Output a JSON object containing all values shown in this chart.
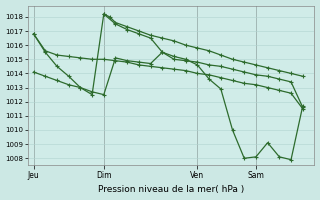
{
  "background_color": "#cce8e4",
  "plot_bg_color": "#d0ece8",
  "grid_color": "#b0d4d0",
  "line_color": "#2d6b2d",
  "marker_color": "#2d6b2d",
  "xlabel": "Pression niveau de la mer( hPa )",
  "ylim": [
    1007.5,
    1018.8
  ],
  "yticks": [
    1008,
    1009,
    1010,
    1011,
    1012,
    1013,
    1014,
    1015,
    1016,
    1017,
    1018
  ],
  "xtick_labels": [
    "Jeu",
    "Dim",
    "Ven",
    "Sam"
  ],
  "xtick_positions": [
    0,
    12,
    28,
    38
  ],
  "total_points": 48,
  "line1_x": [
    0,
    2,
    4,
    6,
    8,
    10,
    12,
    14,
    16,
    18,
    20,
    22,
    24,
    26,
    28,
    30,
    32,
    34,
    36,
    38,
    40,
    42,
    44,
    46
  ],
  "line1_y": [
    1016.8,
    1015.6,
    1015.3,
    1015.2,
    1015.1,
    1015.0,
    1015.0,
    1014.9,
    1014.8,
    1014.6,
    1014.5,
    1014.4,
    1014.3,
    1014.2,
    1014.0,
    1013.9,
    1013.7,
    1013.5,
    1013.3,
    1013.2,
    1013.0,
    1012.8,
    1012.6,
    1011.5
  ],
  "line2_x": [
    0,
    2,
    4,
    6,
    8,
    10,
    12,
    14,
    16,
    18,
    20,
    22,
    24,
    26,
    28,
    30,
    32,
    34,
    36,
    38,
    40,
    42,
    44,
    46
  ],
  "line2_y": [
    1014.1,
    1013.8,
    1013.5,
    1013.2,
    1013.0,
    1012.7,
    1012.5,
    1015.1,
    1014.9,
    1014.8,
    1014.7,
    1015.5,
    1015.0,
    1014.9,
    1014.8,
    1014.6,
    1014.5,
    1014.3,
    1014.1,
    1013.9,
    1013.8,
    1013.6,
    1013.4,
    1011.6
  ],
  "line3_x": [
    0,
    2,
    4,
    6,
    8,
    10,
    12,
    13,
    14,
    16,
    18,
    20,
    22,
    24,
    26,
    28,
    30,
    32,
    34,
    36,
    38,
    40,
    42,
    44,
    46
  ],
  "line3_y": [
    1016.8,
    1015.5,
    1014.5,
    1013.8,
    1013.0,
    1012.5,
    1018.2,
    1018.0,
    1017.6,
    1017.3,
    1017.0,
    1016.7,
    1016.5,
    1016.3,
    1016.0,
    1015.8,
    1015.6,
    1015.3,
    1015.0,
    1014.8,
    1014.6,
    1014.4,
    1014.2,
    1014.0,
    1013.8
  ],
  "line4_x": [
    12,
    14,
    16,
    18,
    20,
    22,
    24,
    26,
    28,
    30,
    32,
    34,
    36,
    38,
    40,
    42,
    44,
    46
  ],
  "line4_y": [
    1018.2,
    1017.5,
    1017.1,
    1016.8,
    1016.5,
    1015.5,
    1015.2,
    1015.0,
    1014.6,
    1013.6,
    1012.9,
    1010.0,
    1008.0,
    1008.1,
    1009.1,
    1008.1,
    1007.9,
    1011.7
  ]
}
